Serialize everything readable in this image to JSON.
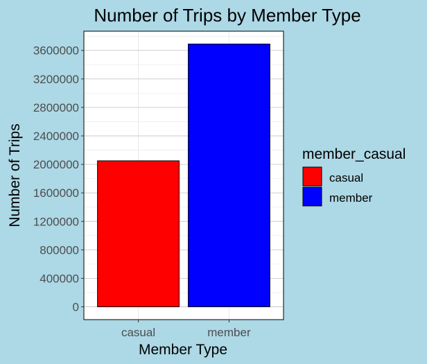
{
  "colors": {
    "background": "#add8e6",
    "panel": "#ffffff",
    "grid_major": "#c8c8c8",
    "grid_minor": "#e6e6e6",
    "axis_border": "#000000",
    "text": "#000000",
    "tick_text": "#4d4d4d"
  },
  "chart_data": {
    "type": "bar",
    "title": "Number of Trips by Member Type",
    "xlabel": "Member Type",
    "ylabel": "Number of Trips",
    "categories": [
      "casual",
      "member"
    ],
    "values": [
      2050000,
      3690000
    ],
    "bar_colors": [
      "#ff0000",
      "#0000ff"
    ],
    "ylim": [
      -180000,
      3870000
    ],
    "yticks": [
      0,
      400000,
      800000,
      1200000,
      1600000,
      2000000,
      2400000,
      2800000,
      3200000,
      3600000
    ],
    "minor_yticks": [
      200000,
      600000,
      1000000,
      1400000,
      1800000,
      2200000,
      2600000,
      3000000,
      3400000,
      3800000
    ],
    "grid": true,
    "legend": {
      "title": "member_casual",
      "position": "right",
      "entries": [
        {
          "label": "casual",
          "color": "#ff0000"
        },
        {
          "label": "member",
          "color": "#0000ff"
        }
      ]
    }
  }
}
